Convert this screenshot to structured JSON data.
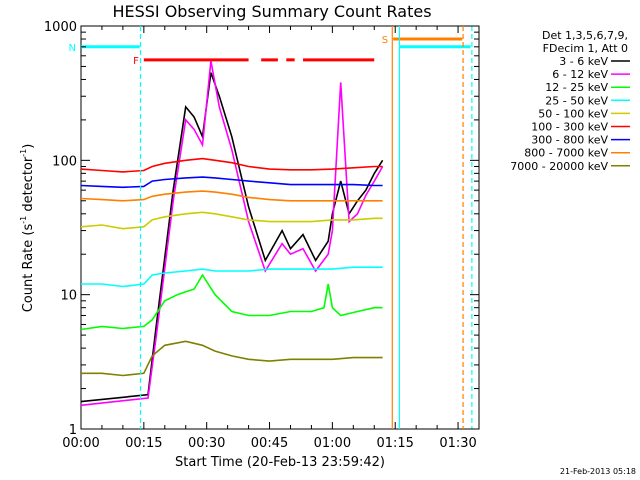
{
  "chart_data": {
    "type": "line",
    "title": "HESSI Observing Summary Count Rates",
    "xlabel": "Start Time (20-Feb-13 23:59:42)",
    "ylabel": "Count Rate (s⁻¹ detector⁻¹)",
    "ylabel_main": "Count Rate (s",
    "ylabel_sup1": "-1",
    "ylabel_mid": " detector",
    "ylabel_sup2": "-1",
    "ylabel_end": ")",
    "yscale": "log",
    "ylim": [
      1,
      1000
    ],
    "xlim_minutes": [
      0,
      95
    ],
    "x_ticks": [
      {
        "label": "00:00",
        "minutes": 0
      },
      {
        "label": "00:15",
        "minutes": 15
      },
      {
        "label": "00:30",
        "minutes": 30
      },
      {
        "label": "00:45",
        "minutes": 45
      },
      {
        "label": "01:00",
        "minutes": 60
      },
      {
        "label": "01:15",
        "minutes": 75
      },
      {
        "label": "01:30",
        "minutes": 90
      }
    ],
    "y_ticks": [
      {
        "label": "1",
        "value": 1
      },
      {
        "label": "10",
        "value": 10
      },
      {
        "label": "100",
        "value": 100
      },
      {
        "label": "1000",
        "value": 1000
      }
    ],
    "legend_header": [
      "Det 1,3,5,6,7,9,",
      "FDecim 1, Att 0"
    ],
    "legend_position": "right",
    "series": [
      {
        "name": "3 - 6 keV",
        "color": "#000000",
        "x": [
          0,
          16,
          18,
          22,
          25,
          27,
          29,
          31,
          33,
          36,
          40,
          44,
          48,
          50,
          53,
          56,
          59,
          60,
          62,
          64,
          66,
          68,
          70,
          72
        ],
        "values": [
          1.6,
          1.8,
          6,
          60,
          250,
          210,
          150,
          450,
          300,
          150,
          45,
          18,
          30,
          22,
          28,
          18,
          25,
          40,
          70,
          40,
          50,
          60,
          80,
          100
        ]
      },
      {
        "name": "6 - 12 keV",
        "color": "#ff00ff",
        "x": [
          0,
          16,
          18,
          22,
          25,
          27,
          29,
          31,
          33,
          36,
          40,
          44,
          48,
          50,
          53,
          56,
          59,
          60,
          62,
          64,
          66,
          68,
          70,
          72
        ],
        "values": [
          1.5,
          1.7,
          5,
          50,
          200,
          170,
          130,
          550,
          250,
          120,
          35,
          15,
          24,
          20,
          22,
          15,
          20,
          30,
          380,
          35,
          40,
          55,
          70,
          90
        ]
      },
      {
        "name": "12 - 25 keV",
        "color": "#00ff00",
        "x": [
          0,
          5,
          10,
          15,
          17,
          20,
          23,
          25,
          27,
          29,
          32,
          36,
          40,
          45,
          50,
          55,
          58,
          59,
          60,
          62,
          66,
          70,
          72
        ],
        "values": [
          5.5,
          5.8,
          5.6,
          5.8,
          6.5,
          9,
          10,
          10.5,
          11,
          14,
          10,
          7.5,
          7,
          7,
          7.5,
          7.5,
          8,
          12,
          8,
          7,
          7.5,
          8,
          8
        ]
      },
      {
        "name": "25 - 50 keV",
        "color": "#00ffff",
        "x": [
          0,
          5,
          10,
          15,
          17,
          20,
          25,
          29,
          32,
          36,
          40,
          45,
          50,
          55,
          60,
          65,
          70,
          72
        ],
        "values": [
          12,
          12,
          11.5,
          12,
          14,
          14.5,
          15,
          15.5,
          15,
          15,
          15,
          15.5,
          15.5,
          15.5,
          15.5,
          16,
          16,
          16
        ]
      },
      {
        "name": "50 - 100 keV",
        "color": "#cccc00",
        "x": [
          0,
          5,
          10,
          15,
          17,
          20,
          25,
          29,
          32,
          36,
          40,
          45,
          50,
          55,
          60,
          65,
          70,
          72
        ],
        "values": [
          32,
          33,
          31,
          32,
          36,
          38,
          40,
          41,
          40,
          38,
          36,
          35,
          35,
          35,
          36,
          36,
          37,
          37
        ]
      },
      {
        "name": "100 - 300 keV",
        "color": "#ff0000",
        "x": [
          0,
          5,
          10,
          15,
          17,
          20,
          25,
          29,
          32,
          36,
          40,
          45,
          50,
          55,
          60,
          65,
          70,
          72
        ],
        "values": [
          86,
          84,
          82,
          84,
          90,
          95,
          100,
          103,
          100,
          96,
          90,
          86,
          85,
          85,
          86,
          88,
          90,
          90
        ]
      },
      {
        "name": "300 - 800 keV",
        "color": "#0000ff",
        "x": [
          0,
          5,
          10,
          15,
          17,
          20,
          25,
          29,
          32,
          36,
          40,
          45,
          50,
          55,
          60,
          65,
          70,
          72
        ],
        "values": [
          65,
          64,
          63,
          64,
          70,
          72,
          74,
          75,
          74,
          72,
          70,
          68,
          66,
          66,
          66,
          66,
          65,
          65
        ]
      },
      {
        "name": "800 - 7000 keV",
        "color": "#ff8000",
        "x": [
          0,
          5,
          10,
          15,
          17,
          20,
          25,
          29,
          32,
          36,
          40,
          45,
          50,
          55,
          60,
          65,
          70,
          72
        ],
        "values": [
          52,
          51,
          50,
          51,
          54,
          56,
          58,
          59,
          58,
          56,
          53,
          51,
          50,
          50,
          50,
          50,
          50,
          50
        ]
      },
      {
        "name": "7000 - 20000 keV",
        "color": "#808000",
        "x": [
          0,
          5,
          10,
          15,
          17,
          20,
          25,
          29,
          32,
          36,
          40,
          45,
          50,
          55,
          60,
          65,
          70,
          72
        ],
        "values": [
          2.6,
          2.6,
          2.5,
          2.6,
          3.5,
          4.2,
          4.5,
          4.2,
          3.8,
          3.5,
          3.3,
          3.2,
          3.3,
          3.3,
          3.3,
          3.4,
          3.4,
          3.4
        ]
      }
    ],
    "flag_bars": [
      {
        "label": "F",
        "color": "#ff0000",
        "y": 560,
        "segments": [
          [
            15,
            40
          ],
          [
            43,
            47
          ],
          [
            49,
            51
          ],
          [
            53,
            70
          ]
        ]
      },
      {
        "label": "N",
        "color": "#00ffff",
        "y": 700,
        "segments": [
          [
            0,
            14
          ],
          [
            76,
            93
          ]
        ]
      },
      {
        "label": "S",
        "color": "#ff8000",
        "y": 800,
        "segments": [
          [
            74.5,
            91
          ]
        ]
      }
    ],
    "vertical_lines": [
      {
        "minutes": 14.2,
        "color": "#00ffff",
        "style": "dashed"
      },
      {
        "minutes": 74.3,
        "color": "#ff8000",
        "style": "solid"
      },
      {
        "minutes": 76,
        "color": "#00ffff",
        "style": "solid"
      },
      {
        "minutes": 91.2,
        "color": "#ff8000",
        "style": "dashed"
      },
      {
        "minutes": 93.3,
        "color": "#00ffff",
        "style": "dashed"
      }
    ],
    "grid": false,
    "timestamp": "21-Feb-2013 05:18"
  }
}
